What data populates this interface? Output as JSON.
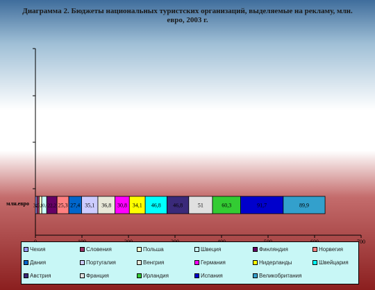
{
  "title": "Диаграмма 2. Бюджеты национальных туристских организаций, выделяемые на рекламу, млн. евро, 2003 г.",
  "chart_data": {
    "type": "bar",
    "orientation": "horizontal",
    "stacked": true,
    "category": "млн.евро",
    "xlim": [
      0,
      700
    ],
    "xticks": [
      0,
      100,
      200,
      300,
      400,
      500,
      600,
      700
    ],
    "series": [
      {
        "name": "Чехия",
        "value": 3.4,
        "color": "#9999ff",
        "label": "3,4"
      },
      {
        "name": "Словения",
        "value": 4.8,
        "color": "#993366",
        "label": "4,8"
      },
      {
        "name": "Польша",
        "value": 5.5,
        "color": "#ffffcc",
        "label": "5,5"
      },
      {
        "name": "Швеция",
        "value": 10.6,
        "color": "#ccffff",
        "label": "10,6"
      },
      {
        "name": "Финляндия",
        "value": 22.2,
        "color": "#660066",
        "label": "22,2"
      },
      {
        "name": "Норвегия",
        "value": 25.3,
        "color": "#ff8080",
        "label": "25,3"
      },
      {
        "name": "Дания",
        "value": 27.4,
        "color": "#0066cc",
        "label": "27,4"
      },
      {
        "name": "Португалия",
        "value": 35.1,
        "color": "#ccccff",
        "label": "35,1"
      },
      {
        "name": "Венгрия",
        "value": 36.8,
        "color": "#e8e8d8",
        "label": "36,8"
      },
      {
        "name": "Германия",
        "value": 30.8,
        "color": "#ff00ff",
        "label": "30,8"
      },
      {
        "name": "Нидерланды",
        "value": 34.1,
        "color": "#ffff00",
        "label": "34,1"
      },
      {
        "name": "Швейцария",
        "value": 46.8,
        "color": "#00ffff",
        "label": "46,8"
      },
      {
        "name": "Австрия",
        "value": 46.8,
        "color": "#3a2a7a",
        "label": "46,8"
      },
      {
        "name": "Франция",
        "value": 51,
        "color": "#e0e0e0",
        "label": "51"
      },
      {
        "name": "Ирландия",
        "value": 60.3,
        "color": "#33cc33",
        "label": "60,3"
      },
      {
        "name": "Испания",
        "value": 91.7,
        "color": "#0000cc",
        "label": "91,7"
      },
      {
        "name": "Великобритания",
        "value": 89.9,
        "color": "#33a0cc",
        "label": "89,9"
      }
    ]
  }
}
